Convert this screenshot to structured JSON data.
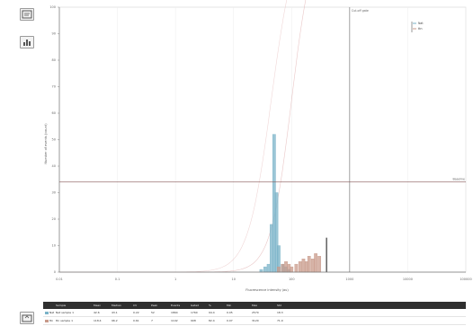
{
  "toolbar": {
    "buttons": [
      {
        "name": "image-view-icon"
      },
      {
        "name": "histogram-view-icon"
      },
      {
        "name": "export-icon"
      }
    ]
  },
  "chart_data": {
    "type": "bar",
    "title": "",
    "xlabel": "Fluorescence intensity (au)",
    "ylabel": "Number of events (count)",
    "xscale": "log",
    "xlim": [
      0.01,
      100000
    ],
    "ylim": [
      0,
      100
    ],
    "x_ticks": [
      "0.01",
      "0.1",
      "1",
      "10",
      "100",
      "1000",
      "10000",
      "100000"
    ],
    "y_ticks": [
      "0",
      "10",
      "20",
      "30",
      "40",
      "50",
      "60",
      "70",
      "80",
      "90",
      "100"
    ],
    "grid": true,
    "legend": {
      "placement": "top-right",
      "items": [
        "Nat",
        "ttn"
      ]
    },
    "annotations": [
      {
        "text": "Cut-off gate",
        "kind": "vertical-line",
        "x": 1000
      },
      {
        "text": "Baseline",
        "kind": "horizontal-line",
        "y": 34
      }
    ],
    "series": [
      {
        "name": "Nat",
        "color": "#7ab3c8",
        "x": [
          30,
          35,
          40,
          45,
          50,
          55,
          60,
          70,
          80,
          90
        ],
        "values": [
          1,
          2,
          3,
          18,
          52,
          30,
          10,
          3,
          2,
          1
        ]
      },
      {
        "name": "ttn",
        "color": "#c89a8a",
        "x": [
          60,
          70,
          80,
          90,
          100,
          120,
          140,
          160,
          180,
          200,
          230,
          260,
          300
        ],
        "values": [
          2,
          3,
          4,
          3,
          2,
          3,
          4,
          5,
          4,
          6,
          5,
          7,
          6
        ]
      }
    ],
    "marker_bar": {
      "x": 400,
      "value": 13,
      "color": "#555555"
    }
  },
  "table": {
    "headers": [
      "",
      "Sample",
      "Mean",
      "Median",
      "CV",
      "Peak",
      "Events",
      "Gated",
      "%",
      "Min",
      "Max",
      "Std"
    ],
    "rows": [
      {
        "color": "#7ab3c8",
        "cells": [
          "",
          "Nat sample 1",
          "42.6",
          "43.1",
          "0.22",
          "52",
          "1864",
          "1760",
          "94.4",
          "0.05",
          "2570",
          "18.3"
        ],
        "label": "Nat"
      },
      {
        "color": "#c89a8a",
        "cells": [
          "",
          "ttn sample 1",
          "118.4",
          "96.2",
          "0.61",
          "7",
          "1102",
          "908",
          "82.4",
          "0.07",
          "3120",
          "71.9"
        ],
        "label": "ttn"
      }
    ]
  }
}
